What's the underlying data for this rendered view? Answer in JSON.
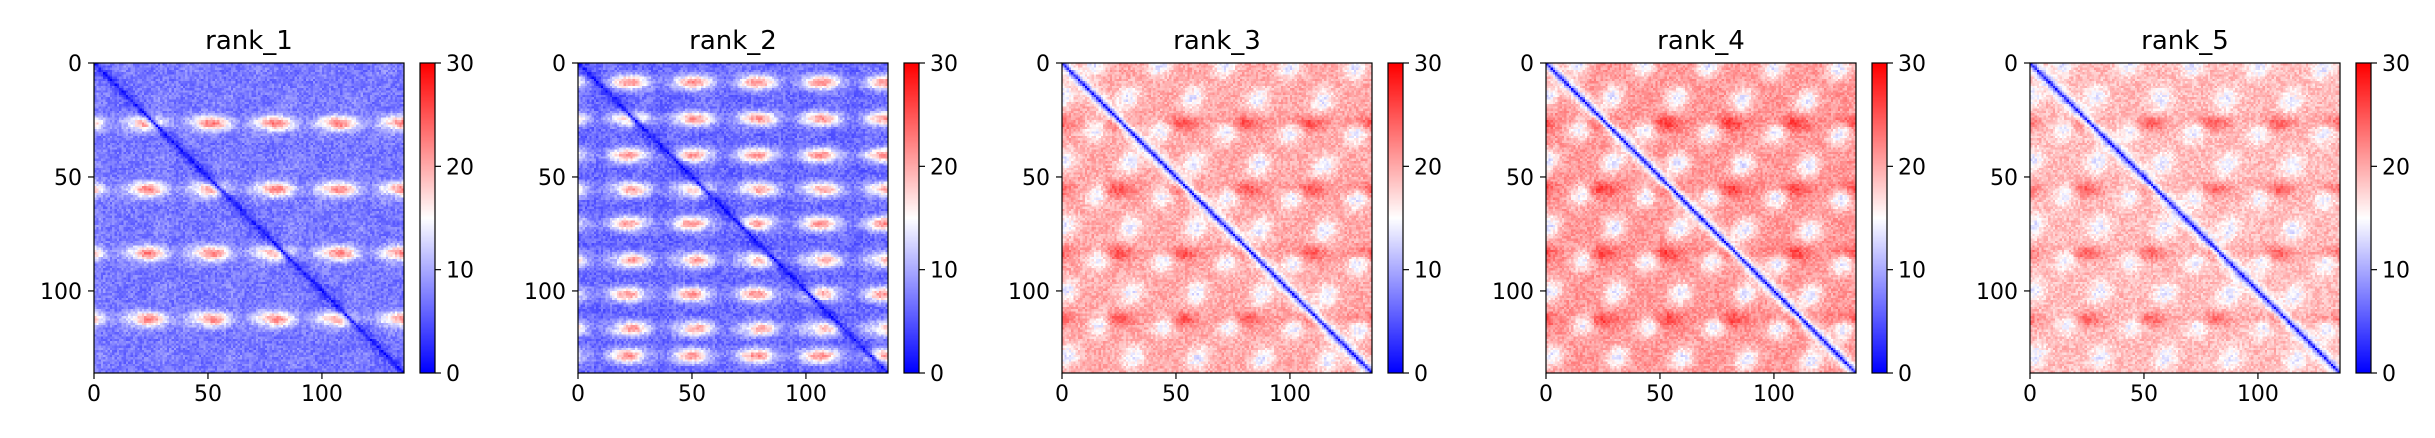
{
  "colors": {
    "low": "#0000ff",
    "mid": "#ffffff",
    "high": "#ff0000",
    "axis": "#000000"
  },
  "chart_data": [
    {
      "type": "heatmap",
      "title": "rank_1",
      "size": 136,
      "x_ticks": [
        0,
        50,
        100
      ],
      "y_ticks": [
        0,
        50,
        100
      ],
      "colorbar": {
        "range": [
          0,
          30
        ],
        "ticks": [
          0,
          10,
          20,
          30
        ],
        "colormap": "bwr"
      },
      "texture": {
        "baseline": 7,
        "band_rows": [
          26,
          55,
          83,
          112
        ],
        "band_peak": 24,
        "blob_level": 9,
        "diagonal": 1
      }
    },
    {
      "type": "heatmap",
      "title": "rank_2",
      "size": 136,
      "x_ticks": [
        0,
        50,
        100
      ],
      "y_ticks": [
        0,
        50,
        100
      ],
      "colorbar": {
        "range": [
          0,
          30
        ],
        "ticks": [
          0,
          10,
          20,
          30
        ],
        "colormap": "bwr"
      },
      "texture": {
        "baseline": 6,
        "band_rows": [
          8,
          24,
          40,
          55,
          70,
          86,
          101,
          116,
          128
        ],
        "band_peak": 22,
        "blob_level": 8,
        "diagonal": 1
      }
    },
    {
      "type": "heatmap",
      "title": "rank_3",
      "size": 136,
      "x_ticks": [
        0,
        50,
        100
      ],
      "y_ticks": [
        0,
        50,
        100
      ],
      "colorbar": {
        "range": [
          0,
          30
        ],
        "ticks": [
          0,
          10,
          20,
          30
        ],
        "colormap": "bwr"
      },
      "texture": {
        "baseline": 20,
        "band_rows": [
          26,
          55,
          83,
          112
        ],
        "band_peak": 26,
        "blob_level": 8,
        "diagonal": 1
      }
    },
    {
      "type": "heatmap",
      "title": "rank_4",
      "size": 136,
      "x_ticks": [
        0,
        50,
        100
      ],
      "y_ticks": [
        0,
        50,
        100
      ],
      "colorbar": {
        "range": [
          0,
          30
        ],
        "ticks": [
          0,
          10,
          20,
          30
        ],
        "colormap": "bwr"
      },
      "texture": {
        "baseline": 21,
        "band_rows": [
          26,
          55,
          83,
          112
        ],
        "band_peak": 27,
        "blob_level": 7,
        "diagonal": 1
      }
    },
    {
      "type": "heatmap",
      "title": "rank_5",
      "size": 136,
      "x_ticks": [
        0,
        50,
        100
      ],
      "y_ticks": [
        0,
        50,
        100
      ],
      "colorbar": {
        "range": [
          0,
          30
        ],
        "ticks": [
          0,
          10,
          20,
          30
        ],
        "colormap": "bwr"
      },
      "texture": {
        "baseline": 19,
        "band_rows": [
          26,
          55,
          83,
          112
        ],
        "band_peak": 25,
        "blob_level": 9,
        "diagonal": 1
      }
    }
  ]
}
